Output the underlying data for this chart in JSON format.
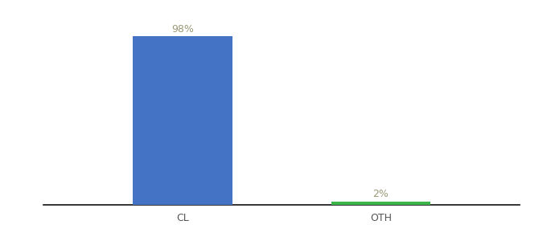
{
  "categories": [
    "CL",
    "OTH"
  ],
  "values": [
    98,
    2
  ],
  "bar_colors": [
    "#4472C4",
    "#3CB54A"
  ],
  "label_color": "#999977",
  "background_color": "#ffffff",
  "ylim": [
    0,
    108
  ],
  "bar_width": 0.5,
  "label_fontsize": 9,
  "tick_fontsize": 9,
  "axis_line_color": "#111111"
}
